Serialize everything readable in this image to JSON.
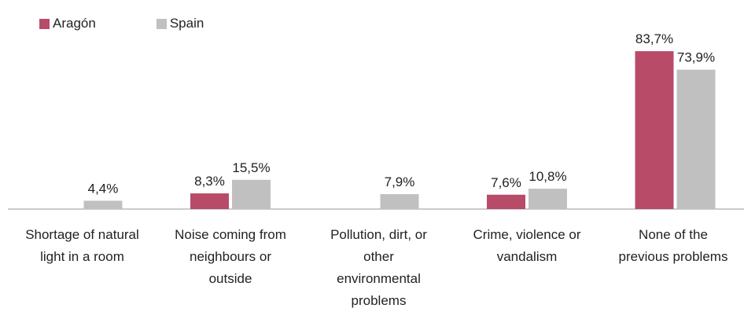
{
  "chart_data": {
    "type": "bar",
    "categories": [
      "Shortage of natural light in a room",
      "Noise coming from neighbours or outside",
      "Pollution, dirt, or other environmental problems",
      "Crime, violence or vandalism",
      "None of the previous problems"
    ],
    "category_lines": [
      [
        "Shortage of natural",
        "light in a room"
      ],
      [
        "Noise coming from",
        "neighbours or",
        "outside"
      ],
      [
        "Pollution, dirt, or",
        "other",
        "environmental",
        "problems"
      ],
      [
        "Crime, violence or",
        "vandalism"
      ],
      [
        "None of the",
        "previous problems"
      ]
    ],
    "series": [
      {
        "name": "Aragón",
        "values": [
          null,
          8.3,
          null,
          7.6,
          83.7
        ],
        "labels": [
          "",
          "8,3%",
          "",
          "7,6%",
          "83,7%"
        ],
        "color": "#b84b68"
      },
      {
        "name": "Spain",
        "values": [
          4.4,
          15.5,
          7.9,
          10.8,
          73.9
        ],
        "labels": [
          "4,4%",
          "15,5%",
          "7,9%",
          "10,8%",
          "73,9%"
        ],
        "color": "#c0c0c0"
      }
    ],
    "ylim": [
      0,
      100
    ],
    "grid": false,
    "legend": "top-left"
  }
}
